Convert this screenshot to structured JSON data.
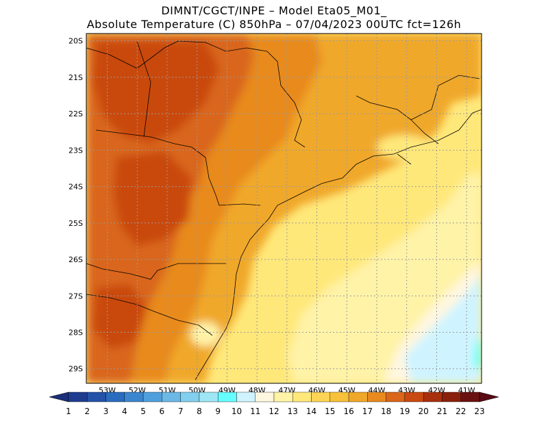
{
  "header": {
    "line1": "DIMNT/CGCT/INPE –  Model Eta05_M01_",
    "line2": "Absolute Temperature (C) 850hPa –  07/04/2023 00UTC fct=126h"
  },
  "map": {
    "lon_labels": [
      "53W",
      "52W",
      "51W",
      "50W",
      "49W",
      "48W",
      "47W",
      "46W",
      "45W",
      "44W",
      "43W",
      "42W",
      "41W"
    ],
    "lat_labels": [
      "20S",
      "21S",
      "22S",
      "23S",
      "24S",
      "25S",
      "26S",
      "27S",
      "28S",
      "29S"
    ],
    "lon_range": [
      -53.7,
      -40.5
    ],
    "lat_range": [
      -29.4,
      -19.8
    ]
  },
  "colorbar": {
    "labels": [
      "1",
      "2",
      "3",
      "4",
      "5",
      "6",
      "7",
      "8",
      "9",
      "10",
      "11",
      "12",
      "13",
      "14",
      "15",
      "16",
      "17",
      "18",
      "19",
      "20",
      "21",
      "22",
      "23"
    ],
    "colors": [
      "#1f3d8f",
      "#2452a8",
      "#2a6cbd",
      "#3b86cf",
      "#4f9fdc",
      "#6bb8e6",
      "#82cfee",
      "#9ee5f5",
      "#66ffff",
      "#cff4ff",
      "#fff6e0",
      "#fff3a8",
      "#ffe87a",
      "#fdd455",
      "#f7c139",
      "#f0a82a",
      "#e88a1e",
      "#d9661a",
      "#c94a10",
      "#a8300c",
      "#8a200c",
      "#6b1010"
    ],
    "under_color": "#1b2f7a",
    "over_color": "#5a0a14"
  }
}
